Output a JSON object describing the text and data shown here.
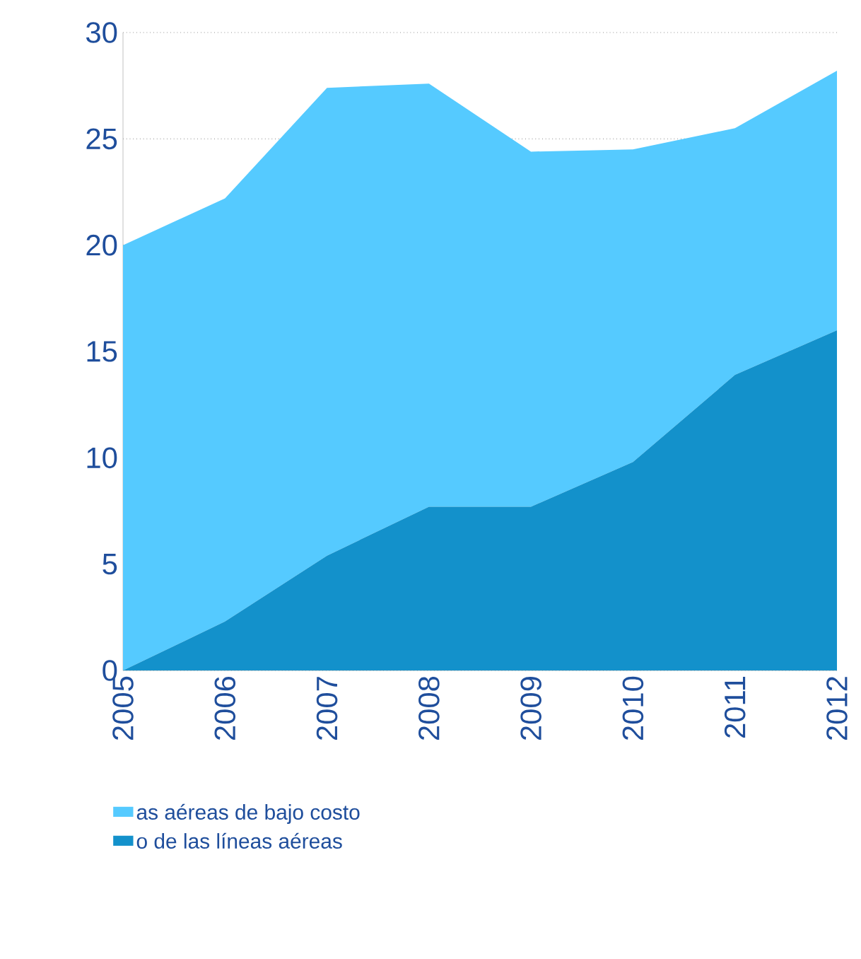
{
  "chart_data": {
    "type": "area",
    "stacked": true,
    "categories": [
      "2005",
      "2006",
      "2007",
      "2008",
      "2009",
      "2010",
      "2011",
      "2012"
    ],
    "series": [
      {
        "name": "o de las líneas aéreas",
        "color": "#1391cb",
        "values": [
          0,
          2.3,
          5.4,
          7.7,
          7.7,
          9.8,
          13.9,
          16.0
        ]
      },
      {
        "name": "as aéreas de bajo costo",
        "color": "#55caff",
        "values": [
          20.0,
          19.9,
          22.0,
          19.9,
          16.7,
          14.7,
          11.6,
          12.2
        ]
      }
    ],
    "ylim": [
      0,
      30
    ],
    "yticks": [
      0,
      5,
      10,
      15,
      20,
      25,
      30
    ],
    "grid": "y",
    "legend": "bottom"
  }
}
